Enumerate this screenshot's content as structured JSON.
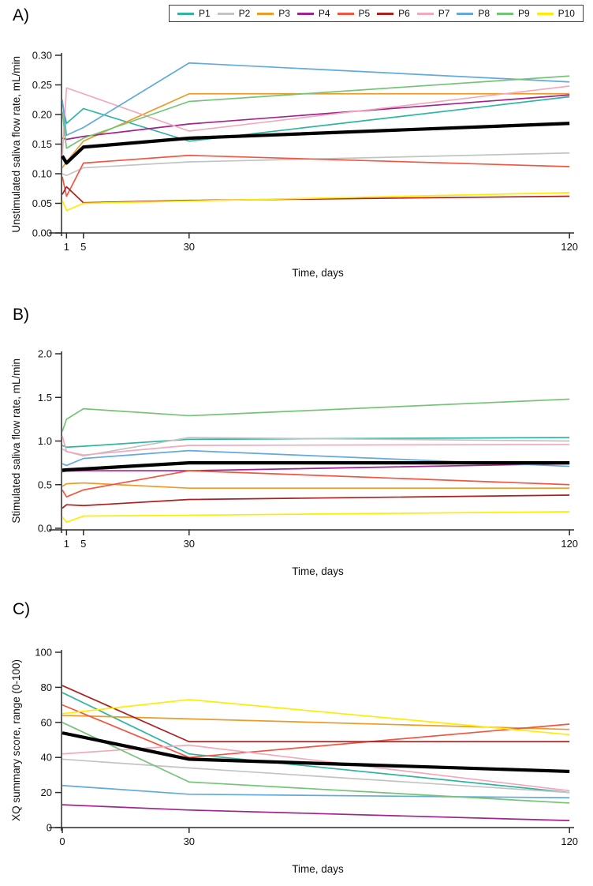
{
  "panel_labels": [
    "A)",
    "B)",
    "C)"
  ],
  "legend": {
    "items": [
      {
        "name": "P1",
        "label": "P1",
        "color": "#30b4a1"
      },
      {
        "name": "P2",
        "label": "P2",
        "color": "#c3c3c3"
      },
      {
        "name": "P3",
        "label": "P3",
        "color": "#ec9b27"
      },
      {
        "name": "P4",
        "label": "P4",
        "color": "#a0238f"
      },
      {
        "name": "P5",
        "label": "P5",
        "color": "#f25540"
      },
      {
        "name": "P6",
        "label": "P6",
        "color": "#ae2020"
      },
      {
        "name": "P7",
        "label": "P7",
        "color": "#f3a8bb"
      },
      {
        "name": "P8",
        "label": "P8",
        "color": "#62a9dd"
      },
      {
        "name": "P9",
        "label": "P9",
        "color": "#74c476"
      },
      {
        "name": "P10",
        "label": "P10",
        "color": "#ffec00"
      }
    ],
    "mean_color": "#000000"
  },
  "chart_data": [
    {
      "type": "line",
      "title": "A",
      "ylabel": "Unstimulated saliva flow rate, mL/min",
      "xlabel": "Time, days",
      "x_days": [
        0,
        1,
        5,
        30,
        120
      ],
      "ylim": [
        0,
        0.3
      ],
      "yticks": [
        0,
        0.05,
        0.1,
        0.15,
        0.2,
        0.25,
        0.3
      ],
      "ytick_labels": [
        "0.00",
        "0.05",
        "0.10",
        "0.15",
        "0.20",
        "0.25",
        "0.30"
      ],
      "xticks": [
        1,
        5,
        30,
        120
      ],
      "xtick_labels": [
        "1",
        "5",
        "30",
        "120"
      ],
      "series": [
        {
          "name": "P1",
          "values": [
            0.22,
            0.185,
            0.21,
            0.155,
            0.23
          ]
        },
        {
          "name": "P2",
          "values": [
            0.1,
            0.097,
            0.11,
            0.12,
            0.135
          ]
        },
        {
          "name": "P3",
          "values": [
            0.11,
            0.12,
            0.155,
            0.235,
            0.235
          ]
        },
        {
          "name": "P4",
          "values": [
            0.16,
            0.158,
            0.163,
            0.184,
            0.233
          ]
        },
        {
          "name": "P5",
          "values": [
            0.095,
            0.062,
            0.118,
            0.131,
            0.112
          ]
        },
        {
          "name": "P6",
          "values": [
            0.065,
            0.078,
            0.051,
            0.055,
            0.062
          ]
        },
        {
          "name": "P7",
          "values": [
            0.13,
            0.245,
            0.235,
            0.172,
            0.248
          ]
        },
        {
          "name": "P8",
          "values": [
            0.225,
            0.165,
            0.178,
            0.287,
            0.255
          ]
        },
        {
          "name": "P9",
          "values": [
            0.205,
            0.143,
            0.16,
            0.222,
            0.265
          ]
        },
        {
          "name": "P10",
          "values": [
            0.055,
            0.038,
            0.05,
            0.054,
            0.068
          ]
        }
      ],
      "mean": {
        "name": "Mean",
        "values": [
          0.13,
          0.118,
          0.145,
          0.16,
          0.185
        ]
      }
    },
    {
      "type": "line",
      "title": "B",
      "ylabel": "Stimulated saliva flow rate, mL/min",
      "xlabel": "Time, days",
      "x_days": [
        0,
        1,
        5,
        30,
        120
      ],
      "ylim": [
        0,
        2.0
      ],
      "yticks": [
        0,
        0.5,
        1.0,
        1.5,
        2.0
      ],
      "ytick_labels": [
        "0.0",
        "0.5",
        "1.0",
        "1.5",
        "2.0"
      ],
      "xticks": [
        1,
        5,
        30,
        120
      ],
      "xtick_labels": [
        "1",
        "5",
        "30",
        "120"
      ],
      "series": [
        {
          "name": "P1",
          "values": [
            0.95,
            0.93,
            0.94,
            1.02,
            1.04
          ]
        },
        {
          "name": "P2",
          "values": [
            0.91,
            0.88,
            0.83,
            1.04,
            1.0
          ]
        },
        {
          "name": "P3",
          "values": [
            0.48,
            0.51,
            0.52,
            0.46,
            0.46
          ]
        },
        {
          "name": "P4",
          "values": [
            0.65,
            0.655,
            0.66,
            0.66,
            0.74
          ]
        },
        {
          "name": "P5",
          "values": [
            0.44,
            0.36,
            0.44,
            0.66,
            0.5
          ]
        },
        {
          "name": "P6",
          "values": [
            0.23,
            0.27,
            0.26,
            0.33,
            0.38
          ]
        },
        {
          "name": "P7",
          "values": [
            1.06,
            0.88,
            0.84,
            0.95,
            0.96
          ]
        },
        {
          "name": "P8",
          "values": [
            0.74,
            0.72,
            0.8,
            0.89,
            0.71
          ]
        },
        {
          "name": "P9",
          "values": [
            1.11,
            1.25,
            1.37,
            1.29,
            1.48
          ]
        },
        {
          "name": "P10",
          "values": [
            0.13,
            0.07,
            0.14,
            0.15,
            0.19
          ]
        }
      ],
      "mean": {
        "name": "Mean",
        "values": [
          0.665,
          0.67,
          0.68,
          0.75,
          0.75
        ]
      }
    },
    {
      "type": "line",
      "title": "C",
      "ylabel": "XQ summary score, range (0-100)",
      "xlabel": "Time, days",
      "x_days": [
        0,
        30,
        120
      ],
      "ylim": [
        0,
        100
      ],
      "yticks": [
        0,
        20,
        40,
        60,
        80,
        100
      ],
      "ytick_labels": [
        "0",
        "20",
        "40",
        "60",
        "80",
        "100"
      ],
      "xticks": [
        0,
        30,
        120
      ],
      "xtick_labels": [
        "0",
        "30",
        "120"
      ],
      "series": [
        {
          "name": "P1",
          "values": [
            77,
            42,
            20
          ]
        },
        {
          "name": "P2",
          "values": [
            39,
            34,
            20
          ]
        },
        {
          "name": "P3",
          "values": [
            64,
            62,
            56
          ]
        },
        {
          "name": "P4",
          "values": [
            13,
            10,
            4
          ]
        },
        {
          "name": "P5",
          "values": [
            70,
            40,
            59
          ]
        },
        {
          "name": "P6",
          "values": [
            81,
            49,
            49
          ]
        },
        {
          "name": "P7",
          "values": [
            42,
            47,
            21
          ]
        },
        {
          "name": "P8",
          "values": [
            24,
            19,
            17
          ]
        },
        {
          "name": "P9",
          "values": [
            60,
            26,
            14
          ]
        },
        {
          "name": "P10",
          "values": [
            65,
            73,
            53
          ]
        }
      ],
      "mean": {
        "name": "Mean",
        "values": [
          54,
          39,
          32
        ]
      }
    }
  ]
}
